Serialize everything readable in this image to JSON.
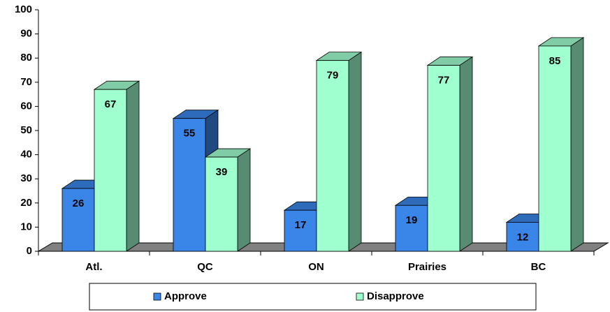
{
  "chart_data": {
    "type": "bar3d",
    "categories": [
      "Atl.",
      "QC",
      "ON",
      "Prairies",
      "BC"
    ],
    "series": [
      {
        "name": "Approve",
        "color": "#3a86e8",
        "values": [
          26,
          55,
          17,
          19,
          12
        ]
      },
      {
        "name": "Disapprove",
        "color": "#9fffcf",
        "values": [
          67,
          39,
          79,
          77,
          85
        ]
      }
    ],
    "ylim": [
      0,
      100
    ],
    "yticks": [
      0,
      10,
      20,
      30,
      40,
      50,
      60,
      70,
      80,
      90,
      100
    ],
    "legend": "bottom"
  }
}
